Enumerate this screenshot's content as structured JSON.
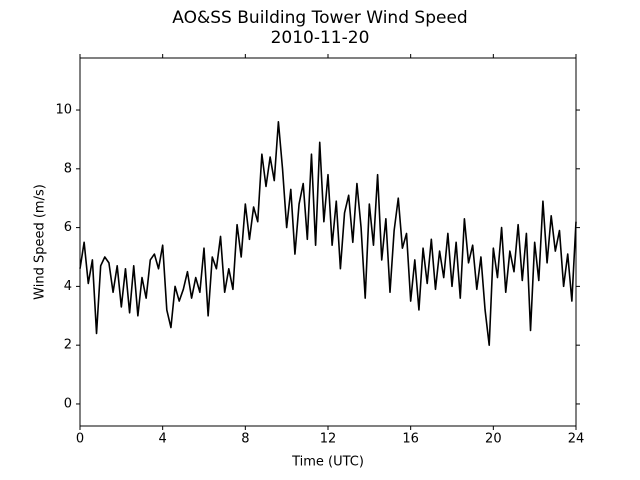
{
  "chart_data": {
    "type": "line",
    "title": "AO&SS Building Tower Wind Speed",
    "subtitle": "2010-11-20",
    "x_label": "Time (UTC)",
    "y_label": "Wind Speed (m/s)",
    "xlim": [
      0,
      24
    ],
    "xticks": [
      0,
      4,
      8,
      12,
      16,
      20,
      24
    ],
    "ylim": [
      -0.75,
      11.77
    ],
    "yticks": [
      0,
      2,
      4,
      6,
      8,
      10
    ],
    "x": [
      0,
      0.2,
      0.4,
      0.6,
      0.8,
      1,
      1.2,
      1.4,
      1.6,
      1.8,
      2,
      2.2,
      2.4,
      2.6,
      2.8,
      3,
      3.2,
      3.4,
      3.6,
      3.8,
      4,
      4.2,
      4.4,
      4.6,
      4.8,
      5,
      5.2,
      5.4,
      5.6,
      5.8,
      6,
      6.2,
      6.4,
      6.6,
      6.8,
      7,
      7.2,
      7.4,
      7.6,
      7.8,
      8,
      8.2,
      8.4,
      8.6,
      8.8,
      9,
      9.2,
      9.4,
      9.6,
      9.8,
      10,
      10.2,
      10.4,
      10.6,
      10.8,
      11,
      11.2,
      11.4,
      11.6,
      11.8,
      12,
      12.2,
      12.4,
      12.6,
      12.8,
      13,
      13.2,
      13.4,
      13.6,
      13.8,
      14,
      14.2,
      14.4,
      14.6,
      14.8,
      15,
      15.2,
      15.4,
      15.6,
      15.8,
      16,
      16.2,
      16.4,
      16.6,
      16.8,
      17,
      17.2,
      17.4,
      17.6,
      17.8,
      18,
      18.2,
      18.4,
      18.6,
      18.8,
      19,
      19.2,
      19.4,
      19.6,
      19.8,
      20,
      20.2,
      20.4,
      20.6,
      20.8,
      21,
      21.2,
      21.4,
      21.6,
      21.8,
      22,
      22.2,
      22.4,
      22.6,
      22.8,
      23,
      23.2,
      23.4,
      23.6,
      23.8,
      24
    ],
    "series": [
      {
        "color": "#000000",
        "values": [
          4.6,
          5.5,
          4.1,
          4.9,
          2.4,
          4.7,
          5.0,
          4.8,
          3.8,
          4.7,
          3.3,
          4.6,
          3.1,
          4.7,
          3.0,
          4.3,
          3.6,
          4.9,
          5.1,
          4.6,
          5.4,
          3.2,
          2.6,
          4.0,
          3.5,
          3.9,
          4.5,
          3.6,
          4.3,
          3.8,
          5.3,
          3.0,
          5.0,
          4.6,
          5.7,
          3.8,
          4.6,
          3.9,
          6.1,
          5.0,
          6.8,
          5.6,
          6.7,
          6.2,
          8.5,
          7.4,
          8.4,
          7.6,
          9.6,
          8.0,
          6.0,
          7.3,
          5.1,
          6.8,
          7.5,
          5.6,
          8.5,
          5.4,
          8.9,
          6.2,
          7.8,
          5.4,
          6.9,
          4.6,
          6.5,
          7.1,
          5.5,
          7.5,
          6.0,
          3.6,
          6.8,
          5.4,
          7.8,
          4.9,
          6.3,
          3.8,
          5.9,
          7.0,
          5.3,
          5.8,
          3.5,
          4.9,
          3.2,
          5.3,
          4.1,
          5.6,
          3.9,
          5.2,
          4.3,
          5.8,
          4.0,
          5.5,
          3.6,
          6.3,
          4.8,
          5.4,
          3.9,
          5.0,
          3.2,
          2.0,
          5.3,
          4.3,
          6.0,
          3.8,
          5.2,
          4.5,
          6.1,
          4.2,
          5.8,
          2.5,
          5.5,
          4.2,
          6.9,
          4.8,
          6.4,
          5.2,
          5.9,
          4.0,
          5.1,
          3.5,
          6.2
        ]
      }
    ]
  }
}
